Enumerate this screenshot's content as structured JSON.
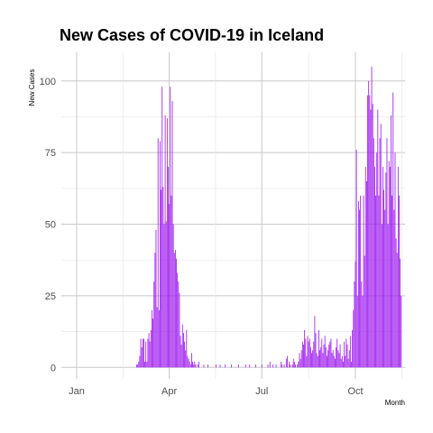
{
  "chart_data": {
    "type": "bar",
    "title": "New Cases of COVID-19 in Iceland",
    "xlabel": "Month",
    "ylabel": "New Cases",
    "x_ticks": [
      "Jan",
      "Apr",
      "Jul",
      "Oct"
    ],
    "y_ticks": [
      0,
      25,
      50,
      75,
      100
    ],
    "ylim": [
      -4,
      110
    ],
    "grid": true,
    "legend": "none",
    "bar_color": "#a020f0",
    "start_date": "2020-01-01",
    "values": [
      0,
      0,
      0,
      0,
      0,
      0,
      0,
      0,
      0,
      0,
      0,
      0,
      0,
      0,
      0,
      0,
      0,
      0,
      0,
      0,
      0,
      0,
      0,
      0,
      0,
      0,
      0,
      0,
      0,
      0,
      0,
      0,
      0,
      0,
      0,
      0,
      0,
      0,
      0,
      0,
      0,
      0,
      0,
      0,
      0,
      0,
      0,
      0,
      0,
      0,
      0,
      0,
      0,
      0,
      0,
      0,
      0,
      0,
      0,
      1,
      1,
      2,
      4,
      10,
      7,
      10,
      10,
      2,
      9,
      2,
      10,
      12,
      9,
      13,
      20,
      17,
      30,
      40,
      48,
      21,
      80,
      20,
      79,
      62,
      98,
      63,
      50,
      88,
      51,
      87,
      70,
      57,
      98,
      60,
      93,
      50,
      40,
      41,
      38,
      33,
      30,
      26,
      11,
      8,
      15,
      12,
      9,
      6,
      13,
      4,
      3,
      2,
      1,
      5,
      2,
      1,
      2,
      1,
      0,
      1,
      2,
      0,
      0,
      0,
      0,
      1,
      0,
      0,
      0,
      1,
      0,
      0,
      0,
      0,
      0,
      0,
      0,
      1,
      0,
      0,
      0,
      1,
      0,
      0,
      0,
      0,
      1,
      0,
      0,
      0,
      0,
      0,
      1,
      0,
      0,
      0,
      0,
      0,
      0,
      1,
      0,
      0,
      0,
      0,
      0,
      0,
      1,
      0,
      0,
      0,
      1,
      0,
      0,
      0,
      0,
      0,
      1,
      0,
      0,
      0,
      0,
      0,
      1,
      0,
      0,
      0,
      0,
      0,
      1,
      0,
      2,
      0,
      0,
      1,
      0,
      0,
      1,
      0,
      0,
      0,
      0,
      2,
      1,
      0,
      1,
      0,
      3,
      4,
      0,
      2,
      1,
      0,
      1,
      3,
      2,
      1,
      0,
      1,
      2,
      5,
      3,
      6,
      9,
      8,
      13,
      10,
      4,
      11,
      9,
      10,
      7,
      5,
      6,
      9,
      18,
      12,
      5,
      4,
      13,
      6,
      7,
      10,
      5,
      8,
      11,
      7,
      4,
      6,
      8,
      9,
      10,
      5,
      6,
      4,
      3,
      7,
      10,
      6,
      5,
      8,
      3,
      4,
      2,
      9,
      4,
      10,
      8,
      3,
      6,
      11,
      2,
      13,
      20,
      30,
      37,
      76,
      25,
      58,
      55,
      60,
      30,
      25,
      60,
      39,
      70,
      65,
      95,
      100,
      95,
      90,
      105,
      92,
      80,
      70,
      60,
      75,
      90,
      60,
      80,
      85,
      50,
      70,
      62,
      55,
      68,
      80,
      50,
      72,
      70,
      88,
      60,
      96,
      55,
      75,
      45,
      40,
      70,
      60,
      38,
      25,
      0,
      0,
      0,
      0,
      0,
      0,
      0,
      0,
      0,
      0,
      0,
      0,
      0,
      0,
      0,
      0,
      0,
      0,
      0,
      0,
      0,
      0,
      0,
      0,
      0,
      0,
      0,
      0,
      0,
      0,
      0,
      0,
      0,
      0,
      0,
      0,
      0,
      0,
      0,
      0,
      0,
      0,
      0,
      0,
      0,
      0,
      0,
      0,
      0,
      0,
      0,
      0,
      0,
      0,
      0,
      0,
      0,
      0,
      0,
      0,
      0
    ]
  }
}
